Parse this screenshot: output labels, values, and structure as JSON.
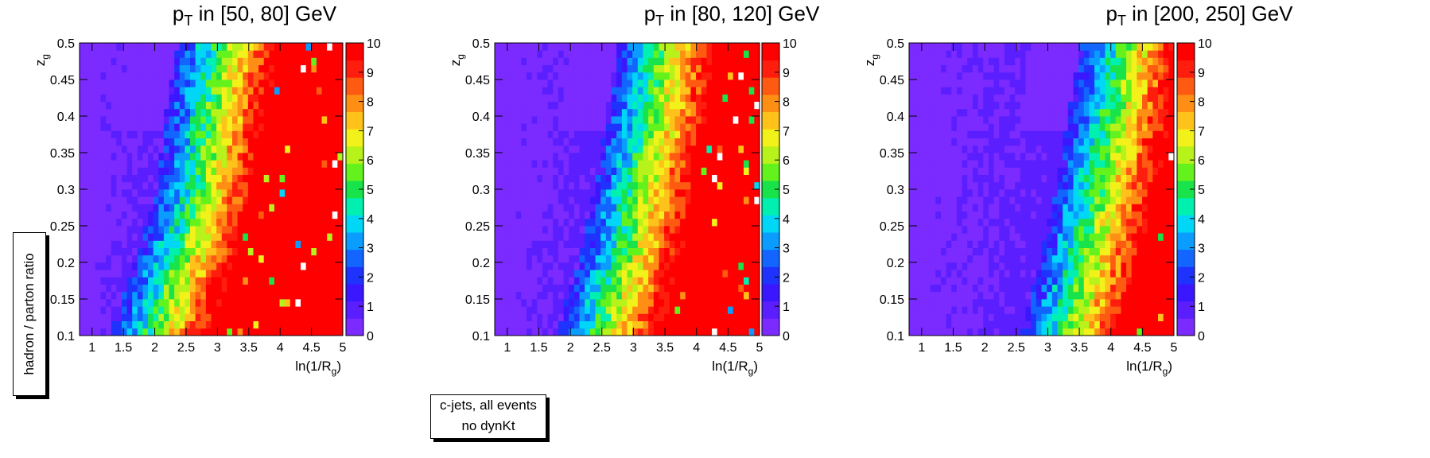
{
  "figure": {
    "ylabel_box": "hadron / parton ratio",
    "legend_line1": "c-jets, all events",
    "legend_line2": "no dynKt"
  },
  "chart_data": [
    {
      "type": "heatmap",
      "title_prefix": "p",
      "title_sub": "T",
      "title_suffix": " in [50, 80] GeV",
      "xlabel": "ln(1/R",
      "xlabel_sub": "g",
      "xlabel_suffix": ")",
      "ylabel": "z",
      "ylabel_sub": "g",
      "xlim": [
        0.8,
        5.0
      ],
      "ylim": [
        0.1,
        0.5
      ],
      "xticks": [
        "1",
        "1.5",
        "2",
        "2.5",
        "3",
        "3.5",
        "4",
        "4.5",
        "5"
      ],
      "yticks": [
        "0.1",
        "0.15",
        "0.2",
        "0.25",
        "0.3",
        "0.35",
        "0.4",
        "0.45",
        "0.5"
      ],
      "zlim": [
        0,
        10
      ],
      "zticks": [
        "0",
        "1",
        "2",
        "3",
        "4",
        "5",
        "6",
        "7",
        "8",
        "9",
        "10"
      ],
      "boundary": {
        "z": [
          0.1,
          0.2,
          0.3,
          0.4,
          0.5
        ],
        "x": [
          2.5,
          2.9,
          3.25,
          3.4,
          3.6
        ]
      },
      "transition_width": 0.35
    },
    {
      "type": "heatmap",
      "title_prefix": "p",
      "title_sub": "T",
      "title_suffix": " in [80, 120] GeV",
      "xlabel": "ln(1/R",
      "xlabel_sub": "g",
      "xlabel_suffix": ")",
      "ylabel": "z",
      "ylabel_sub": "g",
      "xlim": [
        0.8,
        5.0
      ],
      "ylim": [
        0.1,
        0.5
      ],
      "xticks": [
        "1",
        "1.5",
        "2",
        "2.5",
        "3",
        "3.5",
        "4",
        "4.5",
        "5"
      ],
      "yticks": [
        "0.1",
        "0.15",
        "0.2",
        "0.25",
        "0.3",
        "0.35",
        "0.4",
        "0.45",
        "0.5"
      ],
      "zlim": [
        0,
        10
      ],
      "zticks": [
        "0",
        "1",
        "2",
        "3",
        "4",
        "5",
        "6",
        "7",
        "8",
        "9",
        "10"
      ],
      "boundary": {
        "z": [
          0.1,
          0.2,
          0.3,
          0.4,
          0.5
        ],
        "x": [
          3.0,
          3.35,
          3.6,
          3.8,
          4.0
        ]
      },
      "transition_width": 0.35
    },
    {
      "type": "heatmap",
      "title_prefix": "p",
      "title_sub": "T",
      "title_suffix": " in [200, 250] GeV",
      "xlabel": "ln(1/R",
      "xlabel_sub": "g",
      "xlabel_suffix": ")",
      "ylabel": "z",
      "ylabel_sub": "g",
      "xlim": [
        0.8,
        5.0
      ],
      "ylim": [
        0.1,
        0.5
      ],
      "xticks": [
        "1",
        "1.5",
        "2",
        "2.5",
        "3",
        "3.5",
        "4",
        "4.5",
        "5"
      ],
      "yticks": [
        "0.1",
        "0.15",
        "0.2",
        "0.25",
        "0.3",
        "0.35",
        "0.4",
        "0.45",
        "0.5"
      ],
      "zlim": [
        0,
        10
      ],
      "zticks": [
        "0",
        "1",
        "2",
        "3",
        "4",
        "5",
        "6",
        "7",
        "8",
        "9",
        "10"
      ],
      "boundary": {
        "z": [
          0.1,
          0.2,
          0.3,
          0.4,
          0.5
        ],
        "x": [
          3.8,
          4.1,
          4.35,
          4.55,
          4.75
        ]
      },
      "transition_width": 0.35
    }
  ]
}
